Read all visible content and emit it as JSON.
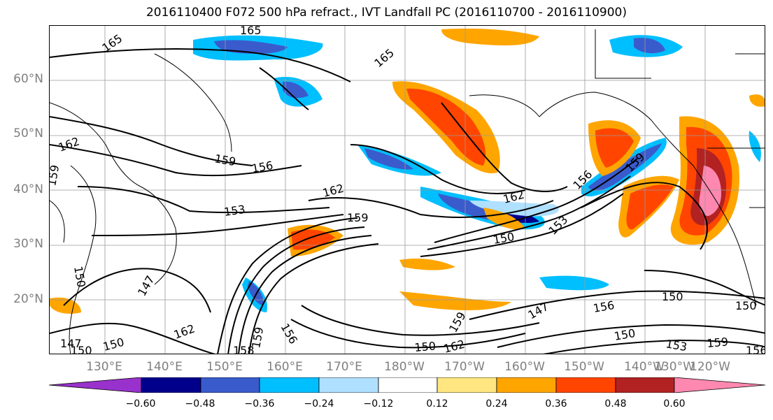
{
  "title": "2016110400 F072 500 hPa refract., IVT Landfall PC (2016110700 - 2016110900)",
  "lat_labels": [
    "60°N",
    "50°N",
    "40°N",
    "30°N",
    "20°N"
  ],
  "lon_labels": [
    "130°E",
    "140°E",
    "150°E",
    "160°E",
    "170°E",
    "180°W",
    "170°W",
    "160°W",
    "150°W",
    "140°W",
    "130°W",
    "120°W"
  ],
  "colorbar": {
    "colors": [
      "#9932cc",
      "#00008b",
      "#3a5bcc",
      "#00bfff",
      "#b0e0ff",
      "#ffffff",
      "#ffe680",
      "#ffa500",
      "#ff4500",
      "#b22222",
      "#ff88b0"
    ],
    "tick_labels": [
      "−0.60",
      "−0.48",
      "−0.36",
      "−0.24",
      "−0.12",
      "0.12",
      "0.24",
      "0.36",
      "0.48",
      "0.60"
    ]
  },
  "contour_labels": [
    "165",
    "165",
    "165",
    "162",
    "159",
    "159",
    "156",
    "162",
    "153",
    "159",
    "162",
    "153",
    "150",
    "156",
    "159",
    "147",
    "150",
    "162",
    "159",
    "156",
    "150",
    "147",
    "156",
    "150",
    "150",
    "150",
    "153",
    "159",
    "156",
    "150",
    "162",
    "159",
    "158",
    "150",
    "147"
  ]
}
